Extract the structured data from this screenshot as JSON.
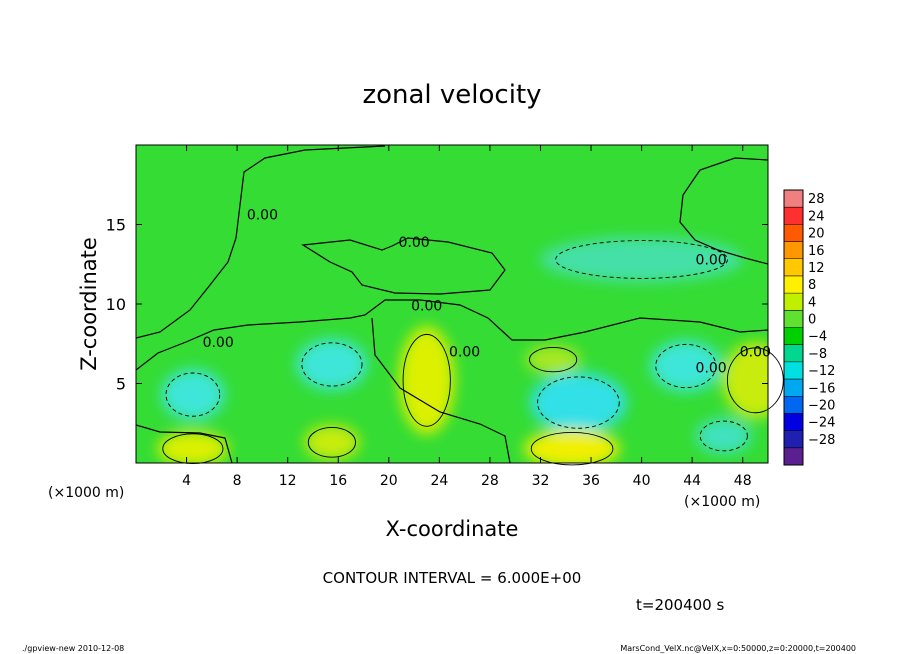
{
  "chart_data": {
    "type": "heatmap",
    "title": "zonal velocity",
    "xlabel": "X-coordinate",
    "ylabel": "Z-coordinate",
    "x_unit": "(×1000 m)",
    "y_unit": "(×1000 m)",
    "xlim": [
      0,
      50
    ],
    "ylim": [
      0,
      20
    ],
    "x_ticks": [
      4,
      8,
      12,
      16,
      20,
      24,
      28,
      32,
      36,
      40,
      44,
      48
    ],
    "y_ticks": [
      5,
      10,
      15
    ],
    "contour_interval_text": "CONTOUR INTERVAL = 6.000E+00",
    "time_text": "t=200400 s",
    "contour_labels": [
      {
        "text": "0.00",
        "x": 10,
        "z": 15.3
      },
      {
        "text": "0.00",
        "x": 22,
        "z": 13.6
      },
      {
        "text": "0.00",
        "x": 45.5,
        "z": 12.5
      },
      {
        "text": "0.00",
        "x": 23,
        "z": 9.6
      },
      {
        "text": "0.00",
        "x": 6.5,
        "z": 7.3
      },
      {
        "text": "0.00",
        "x": 26,
        "z": 6.7
      },
      {
        "text": "0.00",
        "x": 49,
        "z": 6.7
      },
      {
        "text": "0.00",
        "x": 45.5,
        "z": 5.7
      }
    ],
    "features": [
      {
        "kind": "negative",
        "x": 4.5,
        "z": 4.3,
        "rx": 2.5,
        "rz": 1.6,
        "value": -8
      },
      {
        "kind": "negative",
        "x": 15.5,
        "z": 6.2,
        "rx": 2.8,
        "rz": 1.6,
        "value": -10
      },
      {
        "kind": "negative",
        "x": 35,
        "z": 3.8,
        "rx": 3.8,
        "rz": 1.9,
        "value": -12
      },
      {
        "kind": "negative",
        "x": 43.5,
        "z": 6.1,
        "rx": 2.8,
        "rz": 1.6,
        "value": -8
      },
      {
        "kind": "negative",
        "x": 46.5,
        "z": 1.7,
        "rx": 2.2,
        "rz": 1.1,
        "value": -6
      },
      {
        "kind": "negative",
        "x": 40,
        "z": 12.8,
        "rx": 8,
        "rz": 1.4,
        "value": -3
      },
      {
        "kind": "positive",
        "x": 23,
        "z": 5.2,
        "rx": 2.2,
        "rz": 3.4,
        "value": 8
      },
      {
        "kind": "positive",
        "x": 34.5,
        "z": 0.9,
        "rx": 3.8,
        "rz": 1.2,
        "value": 10
      },
      {
        "kind": "positive",
        "x": 4.5,
        "z": 0.9,
        "rx": 2.8,
        "rz": 1.1,
        "value": 8
      },
      {
        "kind": "positive",
        "x": 15.5,
        "z": 1.3,
        "rx": 2.2,
        "rz": 1.1,
        "value": 6
      },
      {
        "kind": "positive",
        "x": 33,
        "z": 6.5,
        "rx": 2.2,
        "rz": 0.9,
        "value": 5
      },
      {
        "kind": "positive",
        "x": 49,
        "z": 5.2,
        "rx": 2.6,
        "rz": 2.4,
        "value": 6
      }
    ]
  },
  "colorbar": {
    "labels": [
      "28",
      "24",
      "20",
      "16",
      "12",
      "8",
      "4",
      "0",
      "−4",
      "−8",
      "−12",
      "−16",
      "−20",
      "−24",
      "−28"
    ],
    "colors": [
      "#f08080",
      "#ff3030",
      "#ff5a00",
      "#ff9800",
      "#ffc800",
      "#fff000",
      "#c0f000",
      "#60e030",
      "#00d000",
      "#00d890",
      "#00e0e0",
      "#00a8f0",
      "#0068f0",
      "#0000e0",
      "#2020b0",
      "#5a2090"
    ]
  },
  "footer": {
    "left": "./gpview-new   2010-12-08",
    "right": "MarsCond_VelX.nc@VelX,x=0:50000,z=0:20000,t=200400"
  }
}
